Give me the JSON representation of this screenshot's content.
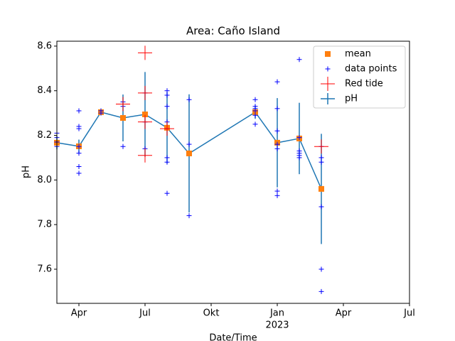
{
  "chart_data": {
    "type": "errorbar-line",
    "title": "Area: Caño Island",
    "xlabel": "Date/Time",
    "ylabel": "pH",
    "xlim": [
      "2022-03",
      "2023-07"
    ],
    "xticks": [
      {
        "value": "2022-04",
        "label": "Apr"
      },
      {
        "value": "2022-07",
        "label": "Jul"
      },
      {
        "value": "2022-10",
        "label": "Okt"
      },
      {
        "value": "2023-01",
        "label": "Jan",
        "year": "2023"
      },
      {
        "value": "2023-04",
        "label": "Apr"
      },
      {
        "value": "2023-07",
        "label": "Jul"
      }
    ],
    "ylim": [
      7.447,
      8.622
    ],
    "yticks": [
      7.6,
      7.8,
      {
        "value": 8,
        "label": "8.0"
      },
      8.2,
      8.4,
      8.6
    ],
    "legend": "upper right",
    "series": [
      {
        "name": "mean",
        "color": "#ff7f0e",
        "marker": "square",
        "x": [
          "2022-03",
          "2022-04",
          "2022-05",
          "2022-06",
          "2022-07",
          "2022-08",
          "2022-09",
          "2022-12",
          "2023-01",
          "2023-02",
          "2023-03"
        ],
        "values": [
          8.167,
          8.151,
          8.304,
          8.278,
          8.294,
          8.234,
          8.119,
          8.304,
          8.167,
          8.186,
          7.96
        ]
      },
      {
        "name": "data points",
        "color": "#0000ff",
        "marker": "plus",
        "x": [
          "2022-03",
          "2022-03",
          "2022-03",
          "2022-03",
          "2022-04",
          "2022-04",
          "2022-04",
          "2022-04",
          "2022-04",
          "2022-04",
          "2022-04",
          "2022-05",
          "2022-05",
          "2022-06",
          "2022-06",
          "2022-06",
          "2022-07",
          "2022-07",
          "2022-07",
          "2022-08",
          "2022-08",
          "2022-08",
          "2022-08",
          "2022-08",
          "2022-08",
          "2022-08",
          "2022-08",
          "2022-09",
          "2022-09",
          "2022-09",
          "2022-12",
          "2022-12",
          "2022-12",
          "2022-12",
          "2022-12",
          "2022-12",
          "2023-01",
          "2023-01",
          "2023-01",
          "2023-01",
          "2023-01",
          "2023-01",
          "2023-01",
          "2023-02",
          "2023-02",
          "2023-02",
          "2023-02",
          "2023-02",
          "2023-02",
          "2023-03",
          "2023-03",
          "2023-03",
          "2023-03",
          "2023-03",
          "2023-03"
        ],
        "values": [
          8.15,
          8.17,
          8.19,
          8.21,
          8.31,
          8.24,
          8.23,
          8.15,
          8.12,
          8.06,
          8.03,
          8.31,
          8.3,
          8.35,
          8.33,
          8.15,
          8.39,
          8.26,
          8.14,
          8.4,
          8.38,
          8.33,
          8.26,
          8.23,
          8.1,
          8.08,
          7.94,
          8.36,
          8.16,
          7.84,
          8.36,
          8.33,
          8.32,
          8.31,
          8.29,
          8.25,
          8.44,
          8.32,
          8.22,
          8.16,
          8.14,
          7.95,
          7.93,
          8.54,
          8.19,
          8.13,
          8.12,
          8.11,
          8.1,
          8.15,
          8.1,
          8.08,
          7.88,
          7.6,
          7.5
        ]
      },
      {
        "name": "Red tide",
        "color": "#ff0000",
        "marker": "big-plus",
        "x": [
          "2022-06",
          "2022-07",
          "2022-07",
          "2022-07",
          "2022-07",
          "2022-08",
          "2023-03"
        ],
        "values": [
          8.34,
          8.57,
          8.39,
          8.26,
          8.11,
          8.23,
          8.15
        ]
      },
      {
        "name": "pH",
        "color": "#1f77b4",
        "marker": "line",
        "x": [
          "2022-03",
          "2022-04",
          "2022-05",
          "2022-06",
          "2022-07",
          "2022-08",
          "2022-09",
          "2022-12",
          "2023-01",
          "2023-02",
          "2023-03"
        ],
        "values": [
          8.167,
          8.151,
          8.304,
          8.278,
          8.294,
          8.234,
          8.119,
          8.304,
          8.167,
          8.186,
          7.96
        ],
        "errors": [
          0.03,
          0.03,
          0.01,
          0.105,
          0.19,
          0.16,
          0.265,
          0.03,
          0.2,
          0.16,
          0.247
        ]
      }
    ]
  }
}
